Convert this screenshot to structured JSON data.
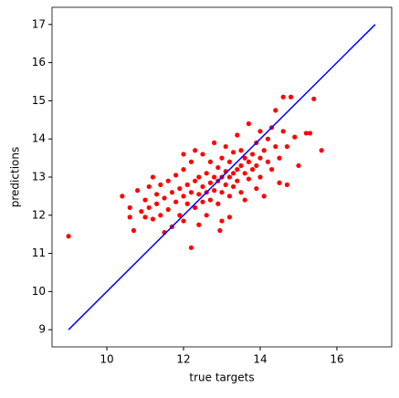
{
  "chart_data": {
    "type": "scatter",
    "xlabel": "true targets",
    "ylabel": "predictions",
    "xlim": [
      8.57,
      17.43
    ],
    "ylim": [
      8.55,
      17.45
    ],
    "xticks": [
      10,
      12,
      14,
      16
    ],
    "yticks": [
      9,
      10,
      11,
      12,
      13,
      14,
      15,
      16,
      17
    ],
    "series": [
      {
        "type": "scatter",
        "color": "#ff0000",
        "x": [
          9.0,
          10.4,
          10.6,
          10.6,
          10.7,
          10.8,
          10.9,
          11.0,
          11.0,
          11.1,
          11.1,
          11.2,
          11.3,
          11.3,
          11.4,
          11.4,
          11.5,
          11.5,
          11.6,
          11.6,
          11.7,
          11.7,
          11.8,
          11.8,
          11.9,
          11.9,
          12.0,
          12.0,
          12.0,
          12.1,
          12.1,
          12.2,
          12.2,
          12.2,
          12.3,
          12.3,
          12.4,
          12.4,
          12.4,
          12.5,
          12.5,
          12.5,
          12.6,
          12.6,
          12.6,
          12.7,
          12.7,
          12.7,
          12.8,
          12.8,
          12.8,
          12.9,
          12.9,
          12.9,
          13.0,
          13.0,
          13.0,
          13.0,
          13.1,
          13.1,
          13.1,
          13.2,
          13.2,
          13.2,
          13.3,
          13.3,
          13.3,
          13.4,
          13.4,
          13.4,
          13.5,
          13.5,
          13.5,
          13.6,
          13.6,
          13.6,
          13.7,
          13.7,
          13.7,
          13.8,
          13.8,
          13.9,
          13.9,
          13.9,
          14.0,
          14.0,
          14.0,
          14.1,
          14.1,
          14.2,
          14.2,
          14.3,
          14.3,
          14.4,
          14.4,
          14.5,
          14.5,
          14.6,
          14.6,
          14.7,
          14.7,
          14.8,
          14.9,
          15.0,
          15.2,
          15.3,
          15.4,
          15.6,
          12.95,
          13.2,
          11.2,
          12.0,
          12.3
        ],
        "values": [
          11.45,
          12.5,
          11.95,
          12.2,
          11.6,
          12.65,
          12.1,
          11.95,
          12.4,
          12.75,
          12.2,
          11.9,
          12.55,
          12.3,
          12.0,
          12.8,
          11.55,
          12.45,
          12.15,
          12.9,
          12.6,
          11.7,
          12.35,
          13.05,
          12.0,
          12.7,
          12.5,
          13.2,
          11.85,
          12.8,
          12.3,
          11.15,
          13.4,
          12.6,
          12.9,
          12.2,
          13.0,
          12.55,
          11.75,
          12.75,
          13.6,
          12.35,
          13.1,
          12.6,
          12.0,
          12.85,
          13.4,
          12.4,
          13.0,
          12.65,
          13.9,
          12.9,
          13.25,
          12.3,
          13.0,
          12.6,
          13.5,
          11.85,
          13.15,
          12.8,
          13.8,
          13.0,
          12.5,
          13.4,
          13.1,
          12.75,
          13.65,
          13.2,
          12.9,
          14.1,
          13.3,
          12.6,
          13.7,
          13.1,
          13.5,
          12.4,
          13.4,
          12.95,
          14.4,
          13.6,
          13.2,
          13.3,
          13.9,
          12.7,
          13.5,
          14.2,
          13.0,
          13.7,
          12.5,
          13.4,
          14.0,
          14.3,
          13.2,
          13.8,
          14.75,
          13.5,
          12.85,
          14.2,
          15.1,
          13.8,
          12.8,
          15.1,
          14.05,
          13.3,
          14.15,
          14.15,
          15.05,
          13.7,
          11.6,
          11.95,
          13.0,
          13.6,
          13.7
        ]
      },
      {
        "type": "line",
        "color": "#0000ff",
        "x": [
          9,
          17
        ],
        "values": [
          9,
          17
        ]
      }
    ]
  }
}
